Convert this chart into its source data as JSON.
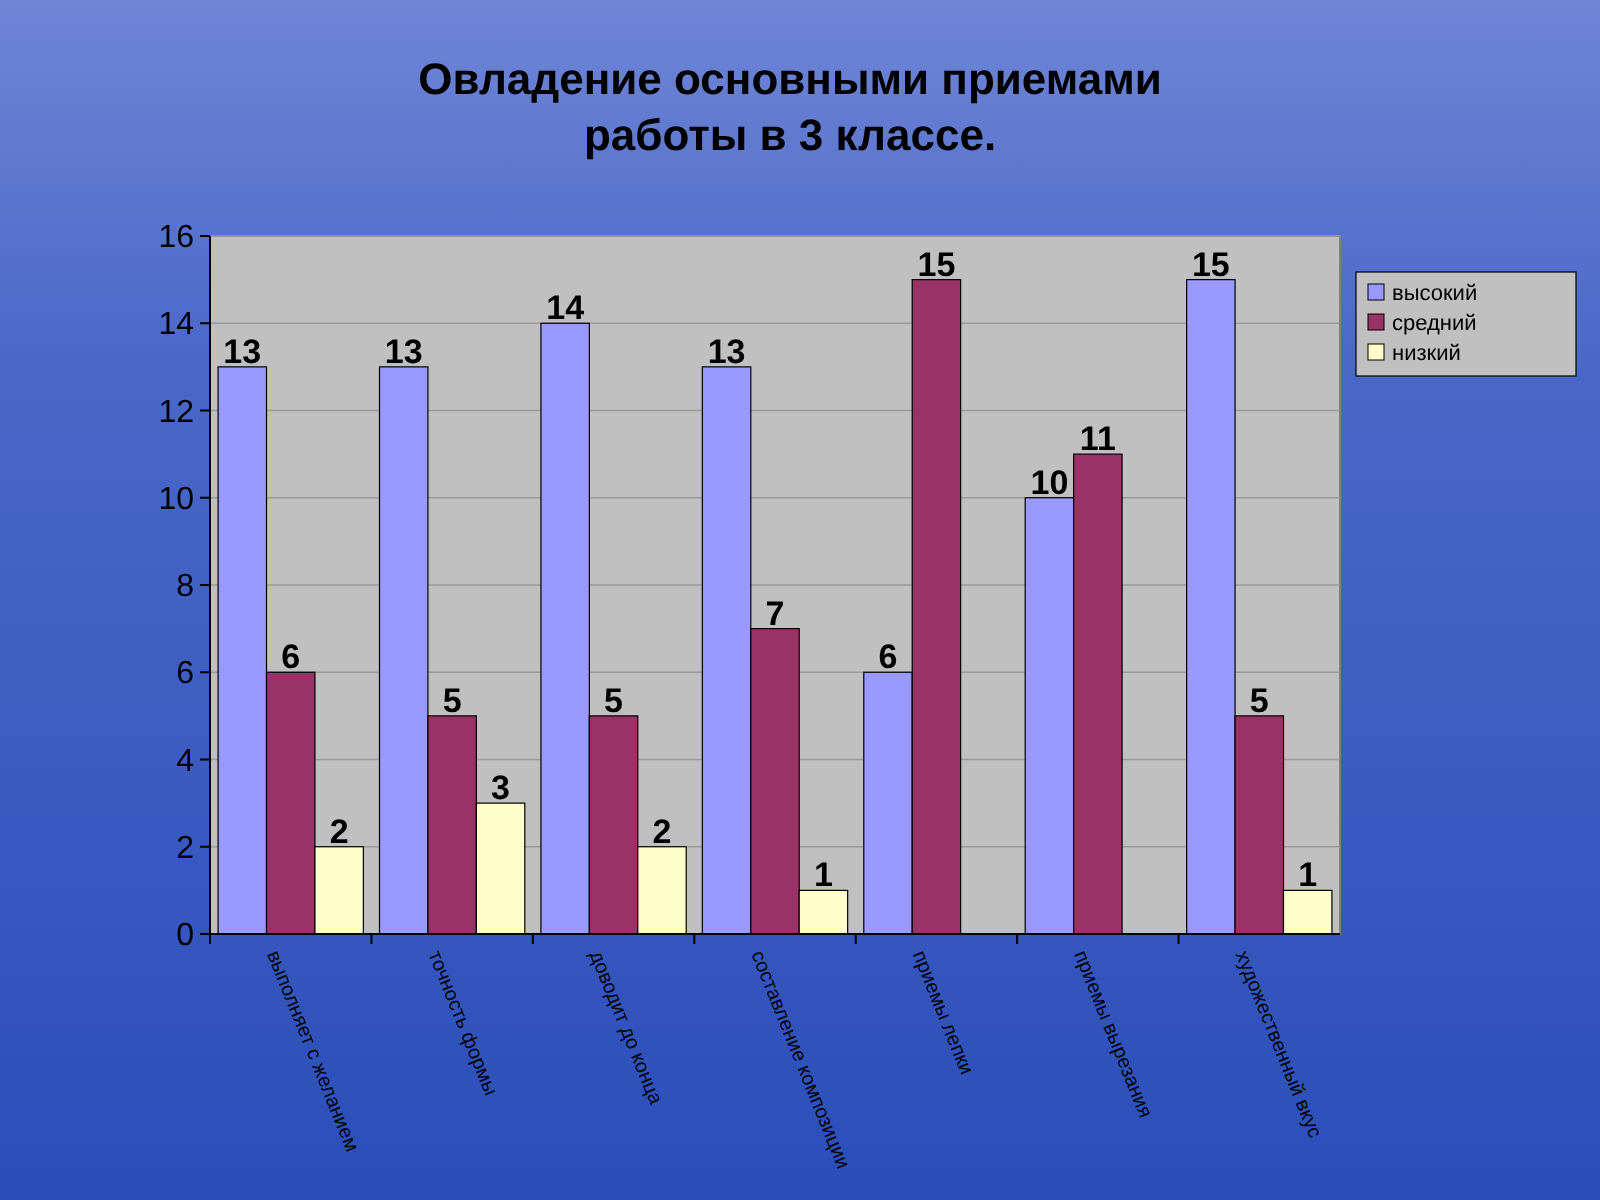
{
  "chart_data": {
    "type": "bar",
    "title": "Овладение основными приемами работы в 3 классе.",
    "categories": [
      "выполняет с желанием",
      "точность формы",
      "доводит до конца",
      "составление композиции",
      "приемы лепки",
      "приемы вырезания",
      "художественный вкус"
    ],
    "series": [
      {
        "name": "высокий",
        "color": "#9999ff",
        "values": [
          13,
          13,
          14,
          13,
          6,
          10,
          15
        ]
      },
      {
        "name": "средний",
        "color": "#993366",
        "values": [
          6,
          5,
          5,
          7,
          15,
          11,
          5
        ]
      },
      {
        "name": "низкий",
        "color": "#ffffcc",
        "values": [
          2,
          3,
          2,
          1,
          null,
          null,
          1
        ]
      }
    ],
    "ylim": [
      0,
      16
    ],
    "yticks": [
      0,
      2,
      4,
      6,
      8,
      10,
      12,
      14,
      16
    ],
    "grid": "y",
    "legend": "right",
    "data_labels": true
  }
}
